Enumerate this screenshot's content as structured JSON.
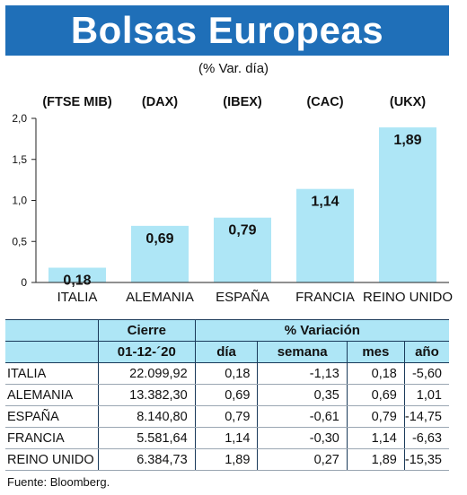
{
  "header": {
    "title": "Bolsas Europeas",
    "subtitle": "(% Var. día)"
  },
  "chart_data": {
    "type": "bar",
    "indices": [
      "(FTSE MIB)",
      "(DAX)",
      "(IBEX)",
      "(CAC)",
      "(UKX)"
    ],
    "categories": [
      "ITALIA",
      "ALEMANIA",
      "ESPAÑA",
      "FRANCIA",
      "REINO UNIDO"
    ],
    "values": [
      0.18,
      0.69,
      0.79,
      1.14,
      1.89
    ],
    "value_labels": [
      "0,18",
      "0,69",
      "0,79",
      "1,14",
      "1,89"
    ],
    "yticks": [
      0,
      0.5,
      1.0,
      1.5,
      2.0
    ],
    "ytick_labels": [
      "0",
      "0,5",
      "1,0",
      "1,5",
      "2,0"
    ],
    "ylim": [
      0,
      2.0
    ],
    "bar_color": "#aee6f6",
    "grid": false
  },
  "table": {
    "header_cierre": "Cierre",
    "header_variacion": "% Variación",
    "date": "01-12-´20",
    "col_dia": "día",
    "col_semana": "semana",
    "col_mes": "mes",
    "col_anio": "año",
    "rows": [
      {
        "country": "ITALIA",
        "cierre": "22.099,92",
        "dia": "0,18",
        "semana": "-1,13",
        "mes": "0,18",
        "anio": "-5,60"
      },
      {
        "country": "ALEMANIA",
        "cierre": "13.382,30",
        "dia": "0,69",
        "semana": "0,35",
        "mes": "0,69",
        "anio": "1,01"
      },
      {
        "country": "ESPAÑA",
        "cierre": "8.140,80",
        "dia": "0,79",
        "semana": "-0,61",
        "mes": "0,79",
        "anio": "-14,75"
      },
      {
        "country": "FRANCIA",
        "cierre": "5.581,64",
        "dia": "1,14",
        "semana": "-0,30",
        "mes": "1,14",
        "anio": "-6,63"
      },
      {
        "country": "REINO UNIDO",
        "cierre": "6.384,73",
        "dia": "1,89",
        "semana": "0,27",
        "mes": "1,89",
        "anio": "-15,35"
      }
    ]
  },
  "footer": {
    "source": "Fuente: Bloomberg."
  },
  "colors": {
    "banner": "#1f6fb8",
    "header_fill": "#aee6f6"
  }
}
